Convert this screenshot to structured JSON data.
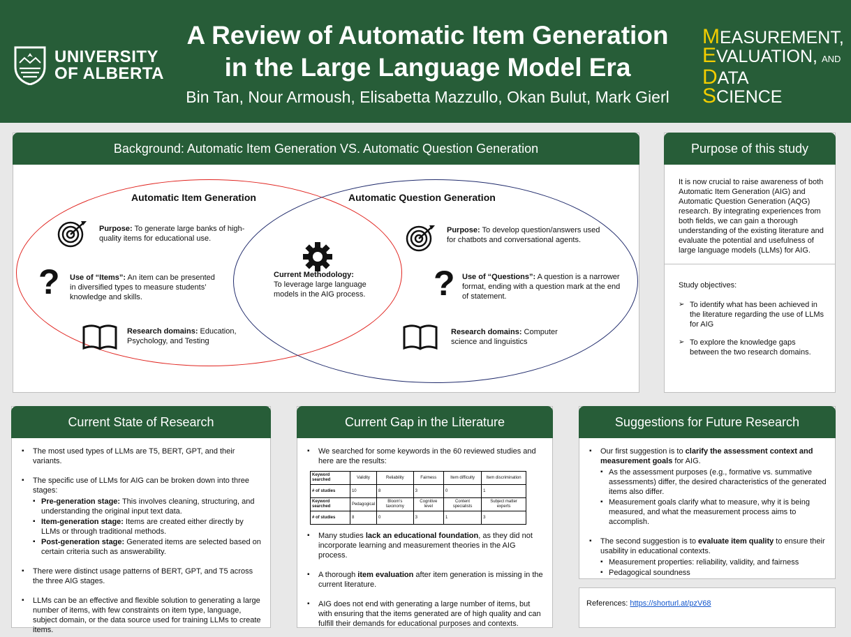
{
  "header": {
    "university_line1": "UNIVERSITY",
    "university_line2": "OF ALBERTA",
    "title_line1": "A Review of Automatic Item Generation",
    "title_line2": "in the Large Language Model Era",
    "authors": "Bin Tan, Nour Armoush, Elisabetta Mazzullo, Okan Bulut, Mark Gierl",
    "meds": {
      "l1_cap": "M",
      "l1_rest": "EASUREMENT,",
      "l2_cap": "E",
      "l2_rest": "VALUATION,",
      "l2_and": "AND",
      "l3_cap": "D",
      "l3_rest": "ATA",
      "l4_cap": "S",
      "l4_rest": "CIENCE"
    }
  },
  "background": {
    "heading": "Background: Automatic Item Generation VS. Automatic Question Generation",
    "aig_title": "Automatic Item Generation",
    "aqg_title": "Automatic Question Generation",
    "aig_purpose_label": "Purpose:",
    "aig_purpose": " To generate large banks of high-quality items for educational use.",
    "aig_use_label": "Use of “Items”:",
    "aig_use": " An item can be presented in diversified types to measure students’ knowledge and skills.",
    "aig_domain_label": "Research domains:",
    "aig_domain": " Education, Psychology, and Testing",
    "center_label": "Current Methodology:",
    "center_text": "To leverage large language models in the AIG process.",
    "aqg_purpose_label": "Purpose:",
    "aqg_purpose": " To develop question/answers used for chatbots and conversational agents.",
    "aqg_use_label": "Use of “Questions”:",
    "aqg_use": " A question is a narrower format, ending with a question mark at the end of statement.",
    "aqg_domain_label": "Research domains:",
    "aqg_domain": " Computer science and linguistics",
    "question_mark": "?"
  },
  "purpose": {
    "heading": "Purpose of this study",
    "text": "It is now crucial to raise awareness of both Automatic Item Generation (AIG) and Automatic Question Generation (AQG) research. By integrating experiences from both fields, we can gain a thorough understanding of the existing literature and evaluate the potential and usefulness of large language models (LLMs) for AIG.",
    "objectives_label": "Study objectives:",
    "objectives": [
      "To identify what has been achieved in the literature regarding the use of LLMs for AIG",
      "To explore the knowledge gaps between the two research domains."
    ]
  },
  "state": {
    "heading": "Current State of Research",
    "b1": "The most used types of LLMs are T5, BERT, GPT, and their variants.",
    "b2": "The specific use of LLMs for AIG can be broken down into three stages:",
    "s1_label": "Pre-generation stage:",
    "s1": " This involves cleaning, structuring, and understanding the original input text data.",
    "s2_label": "Item-generation stage:",
    "s2": " Items are created either directly by LLMs or through traditional methods.",
    "s3_label": "Post-generation stage:",
    "s3": " Generated items are selected based on certain criteria such as answerability.",
    "b3": "There were distinct usage patterns of BERT, GPT, and T5 across the three AIG stages.",
    "b4": "LLMs can be an effective and flexible solution to generating a large number of items, with few constraints on item type, language, subject domain, or the data source used for training LLMs to create items."
  },
  "gap": {
    "heading": "Current Gap in the Literature",
    "b1": "We searched for some keywords in the 60 reviewed studies and here are the results:",
    "table": {
      "row1_label": "Keyword searched",
      "row1": [
        "Validity",
        "Reliability",
        "Fairness",
        "Item difficulty",
        "Item discrimination"
      ],
      "row2_label": "# of studies",
      "row2": [
        "10",
        "8",
        "3",
        "0",
        "1"
      ],
      "row3_label": "Keyword searched",
      "row3": [
        "Pedagogical",
        "Bloom's taxonomy",
        "Cognitive level",
        "Content specialists",
        "Subject matter experts"
      ],
      "row4_label": "# of studies",
      "row4": [
        "8",
        "0",
        "3",
        "1",
        "3"
      ]
    },
    "b2_pre": "Many studies ",
    "b2_bold": "lack an educational foundation",
    "b2_post": ", as they did not incorporate learning and measurement theories in the AIG process.",
    "b3_pre": "A thorough ",
    "b3_bold": "item evaluation",
    "b3_post": " after item generation is missing in the current literature.",
    "b4": "AIG does not end with generating a large number of items, but with ensuring that the items generated are of high quality and can fulfill their demands for educational purposes and contexts."
  },
  "future": {
    "heading": "Suggestions for Future Research",
    "b1_pre": "Our first suggestion is to ",
    "b1_bold": "clarify the assessment context and measurement goals",
    "b1_post": " for AIG.",
    "b1_sub": [
      "As the assessment purposes (e.g., formative vs. summative assessments) differ, the desired characteristics of the generated items also differ.",
      "Measurement goals clarify what to measure, why it is being measured, and what the measurement process aims to accomplish."
    ],
    "b2_pre": "The second suggestion is to ",
    "b2_bold": "evaluate item quality",
    "b2_post": " to ensure their usability in educational contexts.",
    "b2_sub": [
      "Measurement properties: reliability, validity, and fairness",
      "Pedagogical soundness"
    ]
  },
  "references": {
    "label": "References: ",
    "link": "https://shorturl.at/pzV68"
  },
  "colors": {
    "green": "#275d38",
    "gold": "#f2cd00",
    "red_ellipse": "#e0231e",
    "blue_ellipse": "#1f2a6b"
  },
  "icons": [
    "university-shield-icon",
    "target-icon",
    "question-mark-icon",
    "book-icon",
    "gear-icon"
  ]
}
